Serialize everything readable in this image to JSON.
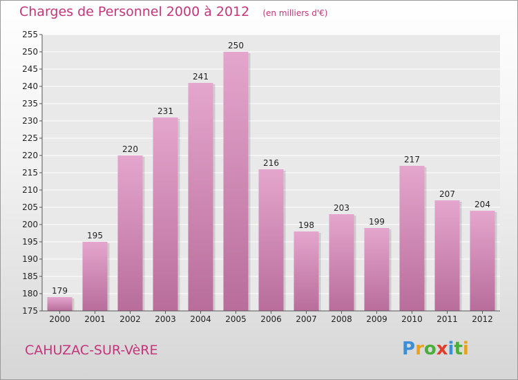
{
  "header": {
    "title": "Charges de Personnel 2000 à 2012",
    "subtitle": "(en milliers d'€)"
  },
  "footer": {
    "location": "CAHUZAC-SUR-VèRE",
    "logo_letters": [
      "P",
      "r",
      "o",
      "x",
      "i",
      "t",
      "i"
    ],
    "logo_colors": [
      "#3a8fd8",
      "#e8a21c",
      "#4cae3a",
      "#e23c2c",
      "#3a8fd8",
      "#4cae3a",
      "#e8a21c"
    ]
  },
  "chart_data": {
    "type": "bar",
    "title": "Charges de Personnel 2000 à 2012",
    "subtitle": "(en milliers d'€)",
    "categories": [
      "2000",
      "2001",
      "2002",
      "2003",
      "2004",
      "2005",
      "2006",
      "2007",
      "2008",
      "2009",
      "2010",
      "2011",
      "2012"
    ],
    "values": [
      179,
      195,
      220,
      231,
      241,
      250,
      216,
      198,
      203,
      199,
      217,
      207,
      204
    ],
    "ylim": [
      175,
      255
    ],
    "yticks": [
      175,
      180,
      185,
      190,
      195,
      200,
      205,
      210,
      215,
      220,
      225,
      230,
      235,
      240,
      245,
      250,
      255
    ],
    "grid": true,
    "bar_color_top": "#e4a6cd",
    "bar_color_bottom": "#b86d9a"
  }
}
